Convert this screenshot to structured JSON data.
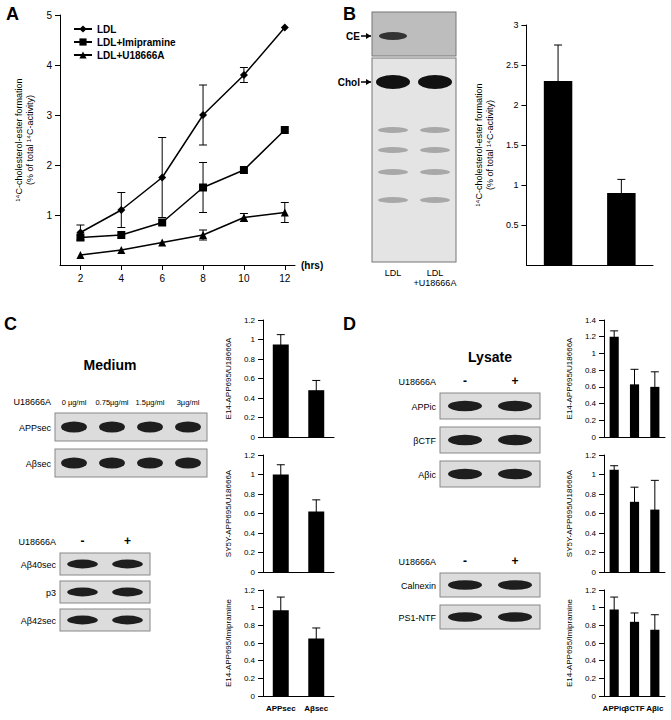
{
  "panels": [
    "A",
    "B",
    "C",
    "D"
  ],
  "chart_data": [
    {
      "type": "line",
      "xlabel": "(hrs)",
      "ylabel": "¹⁴C-cholesterol-ester formation\n(% of total ¹⁴C-activity)",
      "x": [
        2,
        4,
        6,
        8,
        10,
        12
      ],
      "xlim": [
        1,
        12.5
      ],
      "xticks": [
        2,
        4,
        6,
        8,
        10,
        12
      ],
      "ylim": [
        0,
        5
      ],
      "yticks": [
        1,
        2,
        3,
        4,
        5
      ],
      "legend": "upper left",
      "series": [
        {
          "name": "LDL",
          "color": "#000000",
          "marker": "diamond",
          "values": [
            0.65,
            1.1,
            1.75,
            3.0,
            3.8,
            4.75
          ],
          "errors": [
            0.15,
            0.35,
            0.8,
            0.6,
            0.15,
            null
          ]
        },
        {
          "name": "LDL+Imipramine",
          "color": "#000000",
          "marker": "rect",
          "values": [
            0.55,
            0.6,
            0.85,
            1.55,
            1.9,
            2.7
          ],
          "errors": [
            null,
            null,
            null,
            0.5,
            null,
            null
          ]
        },
        {
          "name": "LDL+U18666A",
          "color": "#000000",
          "marker": "triangle",
          "values": [
            0.2,
            0.3,
            0.45,
            0.6,
            0.95,
            1.05
          ],
          "errors": [
            null,
            null,
            null,
            0.1,
            0.08,
            0.2
          ]
        }
      ]
    },
    {
      "type": "bar",
      "ylabel": "¹⁴C-cholesterol-ester formation\n(% of total ¹⁴C-activity)",
      "categories": [
        "LDL",
        "LDL +U18666A"
      ],
      "values": [
        2.3,
        0.9
      ],
      "errors": [
        0.45,
        0.17
      ],
      "color": "#000000",
      "ylim": [
        0,
        3
      ],
      "yticks": [
        0.5,
        1,
        1.5,
        2,
        2.5,
        3
      ],
      "tick_labels": "y"
    },
    {
      "type": "bar",
      "ylabel": "E14-APP695/U18666A",
      "categories": [
        "APPsec",
        "Aβsec"
      ],
      "values": [
        0.95,
        0.48
      ],
      "errors": [
        0.1,
        0.1
      ],
      "color": "#000000",
      "ylim": [
        0,
        1.2
      ],
      "yticks": [
        0,
        0.2,
        0.4,
        0.6,
        0.8,
        1,
        1.2
      ],
      "tick_labels": "y"
    },
    {
      "type": "bar",
      "ylabel": "SY5Y-APP695/U18666A",
      "categories": [
        "APPsec",
        "Aβsec"
      ],
      "values": [
        1.0,
        0.62
      ],
      "errors": [
        0.1,
        0.12
      ],
      "color": "#000000",
      "ylim": [
        0,
        1.2
      ],
      "yticks": [
        0,
        0.2,
        0.4,
        0.6,
        0.8,
        1,
        1.2
      ],
      "tick_labels": "y"
    },
    {
      "type": "bar",
      "ylabel": "E14-APP695/Imipramine",
      "categories": [
        "APPsec",
        "Aβsec"
      ],
      "values": [
        0.97,
        0.65
      ],
      "errors": [
        0.15,
        0.12
      ],
      "color": "#000000",
      "ylim": [
        0,
        1.2
      ],
      "yticks": [
        0,
        0.2,
        0.4,
        0.6,
        0.8,
        1,
        1.2
      ]
    },
    {
      "type": "bar",
      "ylabel": "E14-APP695/U18666A",
      "categories": [
        "APPic",
        "βCTF",
        "Aβic"
      ],
      "values": [
        1.2,
        0.63,
        0.6
      ],
      "errors": [
        0.07,
        0.18,
        0.18
      ],
      "color": "#000000",
      "ylim": [
        0,
        1.4
      ],
      "yticks": [
        0,
        0.2,
        0.4,
        0.6,
        0.8,
        1,
        1.2,
        1.4
      ],
      "tick_labels": "y"
    },
    {
      "type": "bar",
      "ylabel": "SY5Y-APP695/U18666A",
      "categories": [
        "APPic",
        "βCTF",
        "Aβic"
      ],
      "values": [
        1.05,
        0.72,
        0.64
      ],
      "errors": [
        0.04,
        0.15,
        0.3
      ],
      "color": "#000000",
      "ylim": [
        0,
        1.2
      ],
      "yticks": [
        0,
        0.2,
        0.4,
        0.6,
        0.8,
        1,
        1.2
      ],
      "tick_labels": "y"
    },
    {
      "type": "bar",
      "ylabel": "E14-APP695/Imipramine",
      "categories": [
        "APPic",
        "βCTF",
        "Aβic"
      ],
      "values": [
        0.98,
        0.84,
        0.75
      ],
      "errors": [
        0.14,
        0.1,
        0.17
      ],
      "color": "#000000",
      "ylim": [
        0,
        1.2
      ],
      "yticks": [
        0,
        0.2,
        0.4,
        0.6,
        0.8,
        1,
        1.2
      ]
    }
  ],
  "blots": {
    "B": {
      "labels": [
        "CE",
        "Chol"
      ],
      "lanes": [
        "LDL",
        "LDL +U18666A"
      ]
    },
    "C": {
      "title": "Medium",
      "blots": [
        {
          "treatment": "U18666A",
          "lanes": [
            "0 µg/ml",
            "0.75µg/ml",
            "1.5µg/ml",
            "3µg/ml"
          ],
          "rows": [
            "APPsec",
            "Aβsec"
          ]
        },
        {
          "treatment": "U18666A",
          "lanes": [
            "-",
            "+"
          ],
          "rows": [
            "Aβ40sec",
            "p3",
            "Aβ42sec"
          ]
        }
      ]
    },
    "D": {
      "title": "Lysate",
      "blots": [
        {
          "treatment": "U18666A",
          "lanes": [
            "-",
            "+"
          ],
          "rows": [
            "APPic",
            "βCTF",
            "Aβic"
          ]
        },
        {
          "treatment": "U18666A",
          "lanes": [
            "-",
            "+"
          ],
          "rows": [
            "Calnexin",
            "PS1-NTF"
          ]
        }
      ]
    }
  }
}
